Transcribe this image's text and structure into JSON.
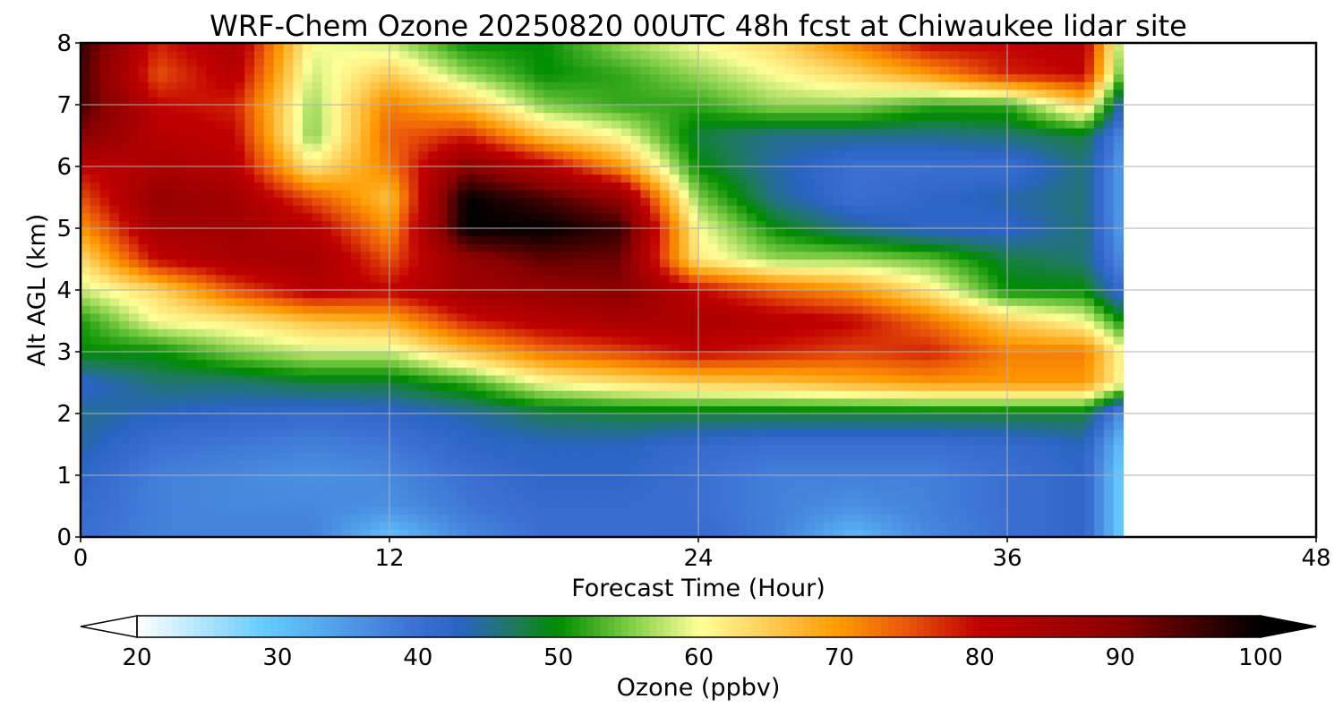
{
  "chart_data": {
    "type": "heatmap",
    "title": "WRF-Chem Ozone  20250820 00UTC 48h fcst at Chiwaukee lidar site",
    "xlabel": "Forecast Time (Hour)",
    "ylabel": "Alt AGL (km)",
    "xlim": [
      0,
      48
    ],
    "ylim": [
      0,
      8
    ],
    "xticks": [
      0,
      12,
      24,
      36,
      48
    ],
    "yticks": [
      0,
      1,
      2,
      3,
      4,
      5,
      6,
      7,
      8
    ],
    "grid": true,
    "data_extent_hours": 40.5,
    "colorbar": {
      "label": "Ozone  (ppbv)",
      "range": [
        20,
        100
      ],
      "ticks": [
        20,
        30,
        40,
        50,
        60,
        70,
        80,
        90,
        100
      ],
      "extend": "both",
      "stops": [
        {
          "v": 20,
          "c": "#ffffff"
        },
        {
          "v": 29,
          "c": "#66ccff"
        },
        {
          "v": 40,
          "c": "#3b6fd2"
        },
        {
          "v": 43,
          "c": "#2a64c2"
        },
        {
          "v": 47,
          "c": "#1e7a5a"
        },
        {
          "v": 50,
          "c": "#008c00"
        },
        {
          "v": 55,
          "c": "#7ccc44"
        },
        {
          "v": 60,
          "c": "#ffff99"
        },
        {
          "v": 65,
          "c": "#ffcc55"
        },
        {
          "v": 70,
          "c": "#ff9900"
        },
        {
          "v": 75,
          "c": "#e8530a"
        },
        {
          "v": 80,
          "c": "#c00000"
        },
        {
          "v": 90,
          "c": "#8a0000"
        },
        {
          "v": 100,
          "c": "#000000"
        }
      ]
    },
    "times": [
      0,
      3,
      6,
      9,
      12,
      15,
      18,
      21,
      24,
      27,
      30,
      33,
      36,
      39,
      40.5
    ],
    "altitudes": [
      0,
      0.5,
      1,
      1.5,
      2,
      2.5,
      3,
      3.5,
      4,
      4.5,
      5,
      5.5,
      6,
      6.5,
      7,
      7.5,
      8
    ],
    "values": [
      [
        40,
        38,
        38,
        38,
        30,
        37,
        40,
        40,
        41,
        38,
        31,
        37,
        40,
        42,
        28
      ],
      [
        41,
        38,
        37,
        37,
        36,
        39,
        41,
        41,
        40,
        38,
        36,
        38,
        40,
        42,
        28
      ],
      [
        42,
        38,
        37,
        36,
        37,
        40,
        42,
        42,
        40,
        38,
        38,
        38,
        40,
        42,
        28
      ],
      [
        44,
        40,
        39,
        38,
        39,
        42,
        43,
        43,
        41,
        40,
        40,
        40,
        41,
        43,
        30
      ],
      [
        45,
        43,
        42,
        41,
        42,
        44,
        47,
        48,
        48,
        48,
        48,
        48,
        48,
        48,
        35
      ],
      [
        42,
        46,
        46,
        48,
        48,
        52,
        60,
        63,
        65,
        66,
        68,
        70,
        70,
        70,
        60
      ],
      [
        50,
        50,
        55,
        58,
        58,
        66,
        73,
        76,
        80,
        78,
        76,
        78,
        72,
        72,
        60
      ],
      [
        51,
        60,
        62,
        66,
        68,
        78,
        82,
        84,
        84,
        82,
        80,
        73,
        65,
        60,
        50
      ],
      [
        58,
        64,
        75,
        82,
        80,
        86,
        88,
        90,
        80,
        74,
        70,
        62,
        50,
        50,
        40
      ],
      [
        63,
        80,
        84,
        85,
        75,
        88,
        93,
        92,
        62,
        56,
        56,
        54,
        48,
        46,
        36
      ],
      [
        70,
        85,
        86,
        82,
        70,
        100,
        100,
        96,
        60,
        50,
        45,
        42,
        42,
        46,
        34
      ],
      [
        75,
        88,
        85,
        75,
        66,
        100,
        95,
        88,
        55,
        45,
        40,
        42,
        44,
        46,
        34
      ],
      [
        80,
        84,
        82,
        62,
        72,
        90,
        82,
        70,
        50,
        44,
        40,
        40,
        40,
        46,
        34
      ],
      [
        90,
        82,
        80,
        55,
        74,
        78,
        66,
        60,
        48,
        45,
        45,
        45,
        46,
        48,
        36
      ],
      [
        95,
        80,
        78,
        56,
        72,
        66,
        55,
        52,
        52,
        56,
        56,
        52,
        52,
        65,
        42
      ],
      [
        95,
        75,
        82,
        58,
        65,
        56,
        50,
        52,
        56,
        60,
        64,
        70,
        78,
        80,
        52
      ],
      [
        96,
        78,
        84,
        60,
        58,
        50,
        50,
        56,
        60,
        64,
        72,
        80,
        80,
        82,
        55
      ]
    ]
  }
}
